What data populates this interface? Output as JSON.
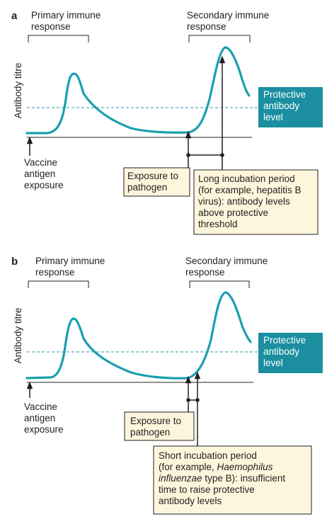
{
  "panels": [
    {
      "letter": "a",
      "primary_response": [
        "Primary immune",
        "response"
      ],
      "secondary_response": [
        "Secondary immune",
        "response"
      ],
      "y_axis_label": "Antibody titre",
      "protective_level": [
        "Protective",
        "antibody",
        "level"
      ],
      "vaccine_label": [
        "Vaccine",
        "antigen",
        "exposure"
      ],
      "exposure_label": [
        "Exposure to",
        "pathogen"
      ],
      "incubation_label": [
        "Long incubation period",
        "(for example, hepatitis B",
        "virus): antibody levels",
        "above protective",
        "threshold"
      ]
    },
    {
      "letter": "b",
      "primary_response": [
        "Primary immune",
        "response"
      ],
      "secondary_response": [
        "Secondary immune",
        "response"
      ],
      "y_axis_label": "Antibody titre",
      "protective_level": [
        "Protective",
        "antibody",
        "level"
      ],
      "vaccine_label": [
        "Vaccine",
        "antigen",
        "exposure"
      ],
      "exposure_label": [
        "Exposure to",
        "pathogen"
      ],
      "incubation_label": [
        [
          {
            "t": "Short incubation period"
          }
        ],
        [
          {
            "t": "(for example, "
          },
          {
            "t": "Haemophilus",
            "i": true
          }
        ],
        [
          {
            "t": "influenzae",
            "i": true
          },
          {
            "t": " type B): insufficient"
          }
        ],
        [
          {
            "t": "time to raise protective"
          }
        ],
        [
          {
            "t": "antibody levels"
          }
        ]
      ]
    }
  ],
  "colors": {
    "curve": "#1aa0b0",
    "protective_box": "#1b8fa0",
    "dashed_line": "#2a9aa8",
    "callout_fill": "#fdf6dc",
    "ink": "#231f20"
  }
}
